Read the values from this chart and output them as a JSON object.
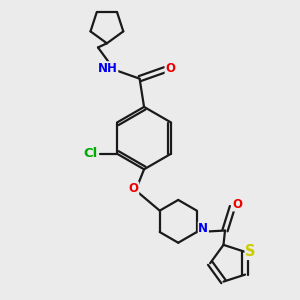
{
  "background_color": "#ebebeb",
  "bond_color": "#1a1a1a",
  "bond_width": 1.6,
  "atom_colors": {
    "N": "#0000ee",
    "O": "#ee0000",
    "S": "#cccc00",
    "Cl": "#00aa00"
  },
  "font_size": 8.5
}
